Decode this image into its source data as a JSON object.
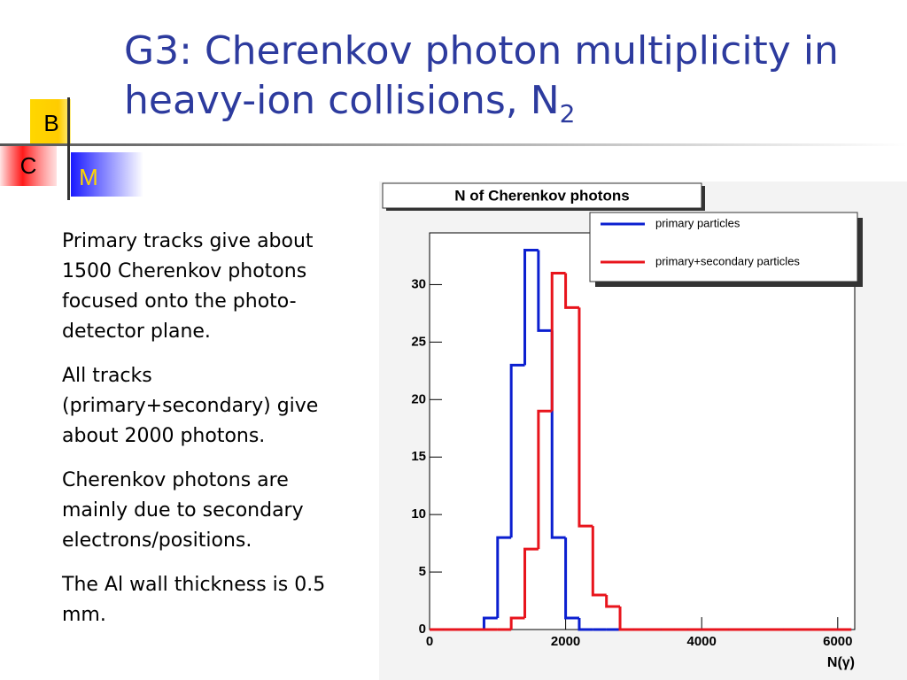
{
  "header": {
    "title": "G3: Cherenkov photon multiplicity in heavy-ion collisions, N",
    "title_sub": "2"
  },
  "logo": {
    "b": "B",
    "c": "C",
    "m": "M"
  },
  "bullets": [
    "Primary tracks give about 1500 Cherenkov photons focused onto the photo-detector plane.",
    "All tracks (primary+secondary) give about 2000 photons.",
    "Cherenkov photons are mainly due to secondary electrons/positions.",
    "The Al wall thickness is 0.5 mm."
  ],
  "chart_data": {
    "type": "histogram",
    "title": "N of Cherenkov photons",
    "x_label": "N(γ)",
    "bins": [
      0,
      200,
      400,
      600,
      800,
      1000,
      1200,
      1400,
      1600,
      1800,
      2000,
      2200,
      2400,
      2600,
      2800,
      3000,
      3200,
      3400,
      3600,
      3800,
      4000,
      4200,
      4400,
      4600,
      4800,
      5000,
      5200,
      5400,
      5600,
      5800,
      6000,
      6200
    ],
    "series": [
      {
        "name": "primary particles",
        "color": "#0b1fd0",
        "values": [
          0,
          0,
          0,
          0,
          1,
          8,
          23,
          33,
          26,
          8,
          1,
          0,
          0,
          0,
          0,
          0,
          0,
          0,
          0,
          0,
          0,
          0,
          0,
          0,
          0,
          0,
          0,
          0,
          0,
          0,
          0
        ]
      },
      {
        "name": "primary+secondary particles",
        "color": "#e8141c",
        "values": [
          0,
          0,
          0,
          0,
          0,
          0,
          1,
          7,
          19,
          31,
          28,
          9,
          3,
          2,
          0,
          0,
          0,
          0,
          0,
          0,
          0,
          0,
          0,
          0,
          0,
          0,
          0,
          0,
          0,
          0,
          0
        ]
      }
    ],
    "xlim": [
      0,
      6250
    ],
    "ylim": [
      0,
      34.5
    ],
    "xticks": [
      0,
      2000,
      4000,
      6000
    ],
    "yticks": [
      0,
      5,
      10,
      15,
      20,
      25,
      30
    ],
    "legend": "upper right"
  }
}
